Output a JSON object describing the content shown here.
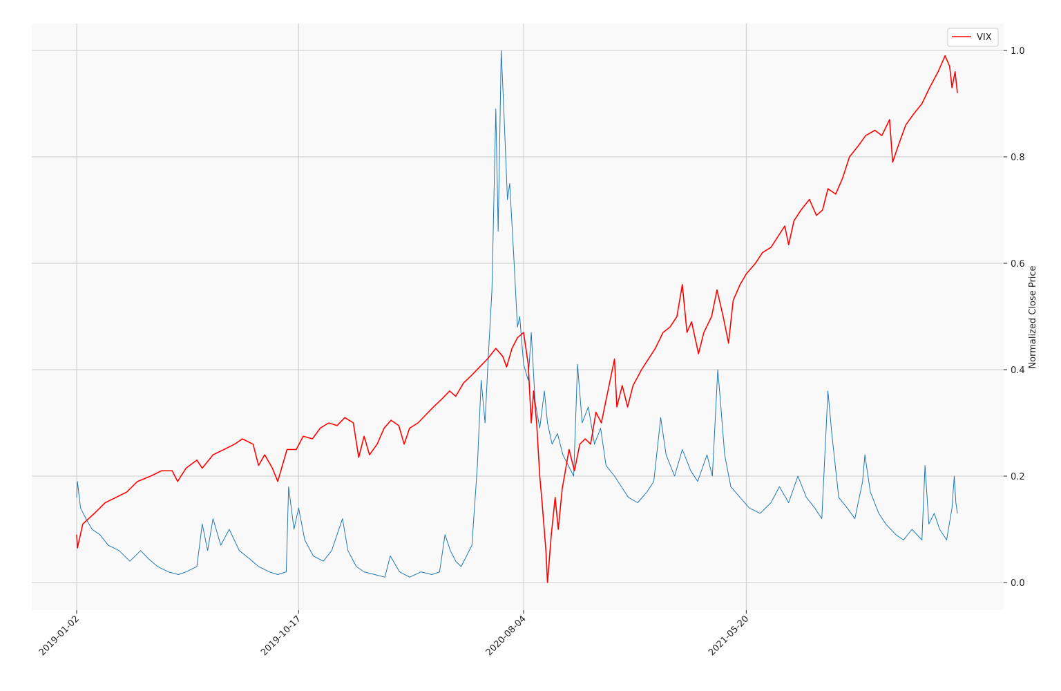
{
  "chart_data": {
    "type": "line",
    "title": "",
    "xlabel": "",
    "ylabel": "Normalized Close Price",
    "x_tick_labels": [
      "2019-01-02",
      "2019-10-17",
      "2020-08-04",
      "2021-05-20"
    ],
    "x_range": [
      "2019-01-02",
      "2022-02-18"
    ],
    "ylim": [
      -0.05,
      1.05
    ],
    "y_ticks": [
      0.0,
      0.2,
      0.4,
      0.6,
      0.8,
      1.0
    ],
    "y_tick_labels": [
      "0.0",
      "0.2",
      "0.4",
      "0.6",
      "0.8",
      "1.0"
    ],
    "y_axis_position": "right",
    "grid": true,
    "legend": {
      "position": "top-right",
      "entries": [
        "VIX"
      ]
    },
    "colors": {
      "red_series": "#ff0000",
      "blue_series": "#1f77b4",
      "plot_background": "#f9f9f9",
      "grid": "#cccccc"
    },
    "series": [
      {
        "name": "VIX",
        "color": "#ff0000",
        "points": [
          [
            "2019-01-02",
            0.09
          ],
          [
            "2019-01-03",
            0.065
          ],
          [
            "2019-01-10",
            0.11
          ],
          [
            "2019-01-25",
            0.13
          ],
          [
            "2019-02-08",
            0.15
          ],
          [
            "2019-02-22",
            0.16
          ],
          [
            "2019-03-08",
            0.17
          ],
          [
            "2019-03-22",
            0.19
          ],
          [
            "2019-04-08",
            0.2
          ],
          [
            "2019-04-22",
            0.21
          ],
          [
            "2019-05-06",
            0.21
          ],
          [
            "2019-05-13",
            0.19
          ],
          [
            "2019-05-24",
            0.215
          ],
          [
            "2019-06-07",
            0.23
          ],
          [
            "2019-06-14",
            0.215
          ],
          [
            "2019-06-28",
            0.24
          ],
          [
            "2019-07-12",
            0.25
          ],
          [
            "2019-07-26",
            0.26
          ],
          [
            "2019-08-05",
            0.27
          ],
          [
            "2019-08-19",
            0.26
          ],
          [
            "2019-08-26",
            0.22
          ],
          [
            "2019-09-03",
            0.24
          ],
          [
            "2019-09-13",
            0.215
          ],
          [
            "2019-09-20",
            0.19
          ],
          [
            "2019-10-02",
            0.25
          ],
          [
            "2019-10-14",
            0.25
          ],
          [
            "2019-10-23",
            0.275
          ],
          [
            "2019-11-04",
            0.27
          ],
          [
            "2019-11-14",
            0.29
          ],
          [
            "2019-11-25",
            0.3
          ],
          [
            "2019-12-06",
            0.295
          ],
          [
            "2019-12-16",
            0.31
          ],
          [
            "2019-12-27",
            0.3
          ],
          [
            "2020-01-03",
            0.235
          ],
          [
            "2020-01-10",
            0.275
          ],
          [
            "2020-01-17",
            0.24
          ],
          [
            "2020-01-27",
            0.26
          ],
          [
            "2020-02-05",
            0.29
          ],
          [
            "2020-02-14",
            0.305
          ],
          [
            "2020-02-24",
            0.295
          ],
          [
            "2020-03-02",
            0.26
          ],
          [
            "2020-03-09",
            0.29
          ],
          [
            "2020-03-20",
            0.3
          ],
          [
            "2020-03-30",
            0.315
          ],
          [
            "2020-04-09",
            0.33
          ],
          [
            "2020-04-20",
            0.345
          ],
          [
            "2020-04-30",
            0.36
          ],
          [
            "2020-05-08",
            0.35
          ],
          [
            "2020-05-18",
            0.375
          ],
          [
            "2020-05-29",
            0.39
          ],
          [
            "2020-06-08",
            0.405
          ],
          [
            "2020-06-18",
            0.42
          ],
          [
            "2020-06-29",
            0.44
          ],
          [
            "2020-07-08",
            0.425
          ],
          [
            "2020-07-13",
            0.405
          ],
          [
            "2020-07-20",
            0.44
          ],
          [
            "2020-07-27",
            0.46
          ],
          [
            "2020-08-04",
            0.47
          ],
          [
            "2020-08-10",
            0.41
          ],
          [
            "2020-08-14",
            0.3
          ],
          [
            "2020-08-17",
            0.36
          ],
          [
            "2020-08-21",
            0.3
          ],
          [
            "2020-08-25",
            0.2
          ],
          [
            "2020-08-28",
            0.15
          ],
          [
            "2020-09-02",
            0.06
          ],
          [
            "2020-09-04",
            0.0
          ],
          [
            "2020-09-09",
            0.09
          ],
          [
            "2020-09-14",
            0.16
          ],
          [
            "2020-09-18",
            0.1
          ],
          [
            "2020-09-23",
            0.175
          ],
          [
            "2020-10-02",
            0.25
          ],
          [
            "2020-10-09",
            0.21
          ],
          [
            "2020-10-16",
            0.26
          ],
          [
            "2020-10-23",
            0.27
          ],
          [
            "2020-10-30",
            0.26
          ],
          [
            "2020-11-06",
            0.32
          ],
          [
            "2020-11-13",
            0.3
          ],
          [
            "2020-11-20",
            0.35
          ],
          [
            "2020-11-30",
            0.42
          ],
          [
            "2020-12-03",
            0.33
          ],
          [
            "2020-12-10",
            0.37
          ],
          [
            "2020-12-17",
            0.33
          ],
          [
            "2020-12-24",
            0.37
          ],
          [
            "2021-01-04",
            0.4
          ],
          [
            "2021-01-13",
            0.42
          ],
          [
            "2021-01-22",
            0.44
          ],
          [
            "2021-02-01",
            0.47
          ],
          [
            "2021-02-10",
            0.48
          ],
          [
            "2021-02-19",
            0.5
          ],
          [
            "2021-02-26",
            0.56
          ],
          [
            "2021-03-04",
            0.47
          ],
          [
            "2021-03-10",
            0.49
          ],
          [
            "2021-03-19",
            0.43
          ],
          [
            "2021-03-26",
            0.47
          ],
          [
            "2021-04-05",
            0.5
          ],
          [
            "2021-04-12",
            0.55
          ],
          [
            "2021-04-20",
            0.5
          ],
          [
            "2021-04-27",
            0.45
          ],
          [
            "2021-05-03",
            0.53
          ],
          [
            "2021-05-12",
            0.56
          ],
          [
            "2021-05-20",
            0.58
          ],
          [
            "2021-06-01",
            0.6
          ],
          [
            "2021-06-10",
            0.62
          ],
          [
            "2021-06-21",
            0.63
          ],
          [
            "2021-06-30",
            0.65
          ],
          [
            "2021-07-09",
            0.67
          ],
          [
            "2021-07-14",
            0.635
          ],
          [
            "2021-07-21",
            0.68
          ],
          [
            "2021-07-30",
            0.7
          ],
          [
            "2021-08-10",
            0.72
          ],
          [
            "2021-08-19",
            0.69
          ],
          [
            "2021-08-27",
            0.7
          ],
          [
            "2021-09-03",
            0.74
          ],
          [
            "2021-09-13",
            0.73
          ],
          [
            "2021-09-22",
            0.76
          ],
          [
            "2021-10-01",
            0.8
          ],
          [
            "2021-10-12",
            0.82
          ],
          [
            "2021-10-22",
            0.84
          ],
          [
            "2021-11-03",
            0.85
          ],
          [
            "2021-11-12",
            0.84
          ],
          [
            "2021-11-22",
            0.87
          ],
          [
            "2021-11-26",
            0.79
          ],
          [
            "2021-12-03",
            0.82
          ],
          [
            "2021-12-13",
            0.86
          ],
          [
            "2021-12-23",
            0.88
          ],
          [
            "2022-01-03",
            0.9
          ],
          [
            "2022-01-13",
            0.93
          ],
          [
            "2022-01-24",
            0.96
          ],
          [
            "2022-02-02",
            0.99
          ],
          [
            "2022-02-08",
            0.97
          ],
          [
            "2022-02-11",
            0.93
          ],
          [
            "2022-02-15",
            0.96
          ],
          [
            "2022-02-18",
            0.92
          ]
        ]
      },
      {
        "color": "#1f77b4",
        "points": [
          [
            "2019-01-02",
            0.16
          ],
          [
            "2019-01-03",
            0.19
          ],
          [
            "2019-01-07",
            0.14
          ],
          [
            "2019-01-14",
            0.12
          ],
          [
            "2019-01-22",
            0.1
          ],
          [
            "2019-02-01",
            0.09
          ],
          [
            "2019-02-12",
            0.07
          ],
          [
            "2019-02-26",
            0.06
          ],
          [
            "2019-03-12",
            0.04
          ],
          [
            "2019-03-26",
            0.06
          ],
          [
            "2019-04-05",
            0.045
          ],
          [
            "2019-04-17",
            0.03
          ],
          [
            "2019-05-01",
            0.02
          ],
          [
            "2019-05-14",
            0.015
          ],
          [
            "2019-05-24",
            0.02
          ],
          [
            "2019-06-07",
            0.03
          ],
          [
            "2019-06-14",
            0.11
          ],
          [
            "2019-06-21",
            0.06
          ],
          [
            "2019-06-28",
            0.12
          ],
          [
            "2019-07-08",
            0.07
          ],
          [
            "2019-07-19",
            0.1
          ],
          [
            "2019-08-01",
            0.06
          ],
          [
            "2019-08-14",
            0.045
          ],
          [
            "2019-08-26",
            0.03
          ],
          [
            "2019-09-09",
            0.02
          ],
          [
            "2019-09-20",
            0.015
          ],
          [
            "2019-10-01",
            0.02
          ],
          [
            "2019-10-04",
            0.18
          ],
          [
            "2019-10-11",
            0.1
          ],
          [
            "2019-10-17",
            0.14
          ],
          [
            "2019-10-25",
            0.08
          ],
          [
            "2019-11-05",
            0.05
          ],
          [
            "2019-11-18",
            0.04
          ],
          [
            "2019-11-29",
            0.06
          ],
          [
            "2019-12-06",
            0.09
          ],
          [
            "2019-12-13",
            0.12
          ],
          [
            "2019-12-20",
            0.06
          ],
          [
            "2019-12-31",
            0.03
          ],
          [
            "2020-01-10",
            0.02
          ],
          [
            "2020-01-24",
            0.015
          ],
          [
            "2020-02-06",
            0.01
          ],
          [
            "2020-02-13",
            0.05
          ],
          [
            "2020-02-25",
            0.02
          ],
          [
            "2020-03-09",
            0.01
          ],
          [
            "2020-03-24",
            0.02
          ],
          [
            "2020-04-07",
            0.015
          ],
          [
            "2020-04-17",
            0.02
          ],
          [
            "2020-04-24",
            0.09
          ],
          [
            "2020-05-01",
            0.06
          ],
          [
            "2020-05-08",
            0.04
          ],
          [
            "2020-05-15",
            0.03
          ],
          [
            "2020-05-22",
            0.05
          ],
          [
            "2020-05-29",
            0.07
          ],
          [
            "2020-06-05",
            0.22
          ],
          [
            "2020-06-10",
            0.38
          ],
          [
            "2020-06-15",
            0.3
          ],
          [
            "2020-06-19",
            0.42
          ],
          [
            "2020-06-24",
            0.55
          ],
          [
            "2020-06-29",
            0.89
          ],
          [
            "2020-07-02",
            0.66
          ],
          [
            "2020-07-06",
            1.0
          ],
          [
            "2020-07-09",
            0.9
          ],
          [
            "2020-07-14",
            0.72
          ],
          [
            "2020-07-17",
            0.75
          ],
          [
            "2020-07-22",
            0.62
          ],
          [
            "2020-07-27",
            0.48
          ],
          [
            "2020-07-30",
            0.5
          ],
          [
            "2020-08-04",
            0.41
          ],
          [
            "2020-08-10",
            0.38
          ],
          [
            "2020-08-14",
            0.47
          ],
          [
            "2020-08-19",
            0.34
          ],
          [
            "2020-08-25",
            0.29
          ],
          [
            "2020-08-31",
            0.36
          ],
          [
            "2020-09-04",
            0.3
          ],
          [
            "2020-09-10",
            0.26
          ],
          [
            "2020-09-17",
            0.28
          ],
          [
            "2020-09-24",
            0.24
          ],
          [
            "2020-10-01",
            0.22
          ],
          [
            "2020-10-08",
            0.2
          ],
          [
            "2020-10-13",
            0.41
          ],
          [
            "2020-10-19",
            0.3
          ],
          [
            "2020-10-27",
            0.33
          ],
          [
            "2020-11-04",
            0.26
          ],
          [
            "2020-11-12",
            0.29
          ],
          [
            "2020-11-19",
            0.22
          ],
          [
            "2020-11-30",
            0.2
          ],
          [
            "2020-12-09",
            0.18
          ],
          [
            "2020-12-18",
            0.16
          ],
          [
            "2020-12-30",
            0.15
          ],
          [
            "2021-01-11",
            0.17
          ],
          [
            "2021-01-20",
            0.19
          ],
          [
            "2021-01-29",
            0.31
          ],
          [
            "2021-02-05",
            0.24
          ],
          [
            "2021-02-16",
            0.2
          ],
          [
            "2021-02-26",
            0.25
          ],
          [
            "2021-03-09",
            0.21
          ],
          [
            "2021-03-18",
            0.19
          ],
          [
            "2021-03-30",
            0.24
          ],
          [
            "2021-04-06",
            0.2
          ],
          [
            "2021-04-13",
            0.4
          ],
          [
            "2021-04-16",
            0.35
          ],
          [
            "2021-04-22",
            0.24
          ],
          [
            "2021-04-30",
            0.18
          ],
          [
            "2021-05-12",
            0.16
          ],
          [
            "2021-05-24",
            0.14
          ],
          [
            "2021-06-07",
            0.13
          ],
          [
            "2021-06-21",
            0.15
          ],
          [
            "2021-07-02",
            0.18
          ],
          [
            "2021-07-14",
            0.15
          ],
          [
            "2021-07-26",
            0.2
          ],
          [
            "2021-08-06",
            0.16
          ],
          [
            "2021-08-17",
            0.14
          ],
          [
            "2021-08-26",
            0.12
          ],
          [
            "2021-09-03",
            0.36
          ],
          [
            "2021-09-08",
            0.28
          ],
          [
            "2021-09-17",
            0.16
          ],
          [
            "2021-09-28",
            0.14
          ],
          [
            "2021-10-08",
            0.12
          ],
          [
            "2021-10-18",
            0.19
          ],
          [
            "2021-10-21",
            0.24
          ],
          [
            "2021-10-28",
            0.17
          ],
          [
            "2021-11-08",
            0.13
          ],
          [
            "2021-11-17",
            0.11
          ],
          [
            "2021-11-30",
            0.09
          ],
          [
            "2021-12-10",
            0.08
          ],
          [
            "2021-12-21",
            0.1
          ],
          [
            "2022-01-03",
            0.08
          ],
          [
            "2022-01-07",
            0.22
          ],
          [
            "2022-01-12",
            0.11
          ],
          [
            "2022-01-19",
            0.13
          ],
          [
            "2022-01-26",
            0.1
          ],
          [
            "2022-02-04",
            0.08
          ],
          [
            "2022-02-11",
            0.14
          ],
          [
            "2022-02-14",
            0.2
          ],
          [
            "2022-02-16",
            0.15
          ],
          [
            "2022-02-18",
            0.13
          ]
        ]
      }
    ]
  }
}
